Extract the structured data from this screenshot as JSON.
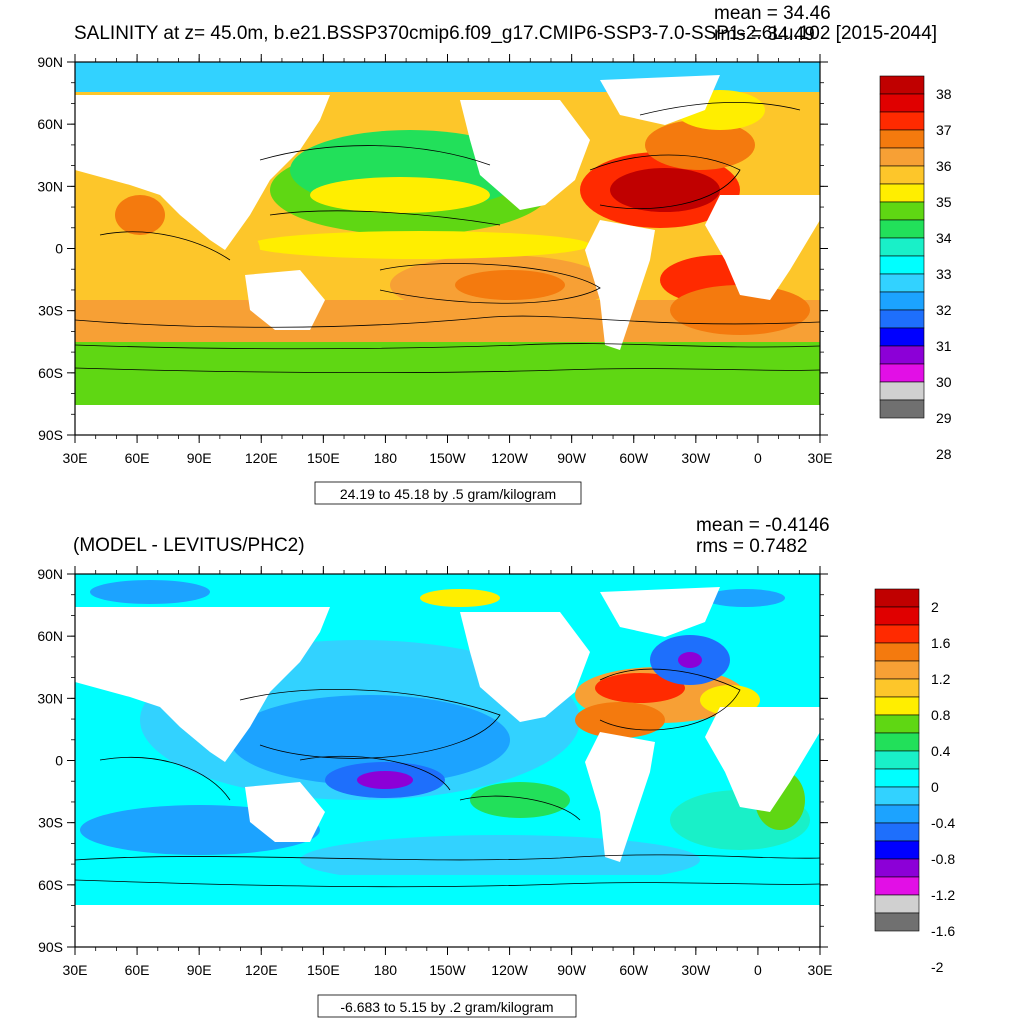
{
  "panel1": {
    "title": "SALINITY at z=  45.0m, b.e21.BSSP370cmip6.f09_g17.CMIP6-SSP3-7.0-SSP1-2.6Lu.102 [2015-2044]",
    "mean_label": "mean = 34.46",
    "rms_label": "rms = 34.49",
    "range_label": "24.19 to 45.18 by .5 gram/kilogram",
    "colorbar": {
      "labels": [
        "38",
        "37",
        "36",
        "35",
        "34",
        "33",
        "32",
        "31",
        "30",
        "29",
        "28"
      ],
      "colors": [
        "#c00000",
        "#e00000",
        "#ff2a00",
        "#f47a0e",
        "#f7a035",
        "#fdc62a",
        "#ffee00",
        "#5fd713",
        "#22e05a",
        "#19f0c8",
        "#00ffff",
        "#32d2ff",
        "#1ca3ff",
        "#1e6ffc",
        "#0000ff",
        "#8c00d7",
        "#e20fe6",
        "#d0d0d0",
        "#707070"
      ]
    }
  },
  "panel2": {
    "title": "(MODEL - LEVITUS/PHC2)",
    "mean_label": "mean = -0.4146",
    "rms_label": "rms = 0.7482",
    "range_label": "-6.683 to 5.15 by .2 gram/kilogram",
    "colorbar": {
      "labels": [
        "2",
        "1.6",
        "1.2",
        "0.8",
        "0.4",
        "0",
        "-0.4",
        "-0.8",
        "-1.2",
        "-1.6",
        "-2"
      ],
      "colors": [
        "#c00000",
        "#e00000",
        "#ff2a00",
        "#f47a0e",
        "#f7a035",
        "#fdc62a",
        "#ffee00",
        "#5fd713",
        "#22e05a",
        "#19f0c8",
        "#00ffff",
        "#32d2ff",
        "#1ca3ff",
        "#1e6ffc",
        "#0000ff",
        "#8c00d7",
        "#e20fe6",
        "#d0d0d0",
        "#707070"
      ]
    }
  },
  "axes": {
    "lat_labels": [
      "90N",
      "60N",
      "30N",
      "0",
      "30S",
      "60S",
      "90S"
    ],
    "lon_labels": [
      "30E",
      "60E",
      "90E",
      "120E",
      "150E",
      "180",
      "150W",
      "120W",
      "90W",
      "60W",
      "30W",
      "0",
      "30E"
    ]
  },
  "palette": {
    "land": "#ffffff"
  }
}
